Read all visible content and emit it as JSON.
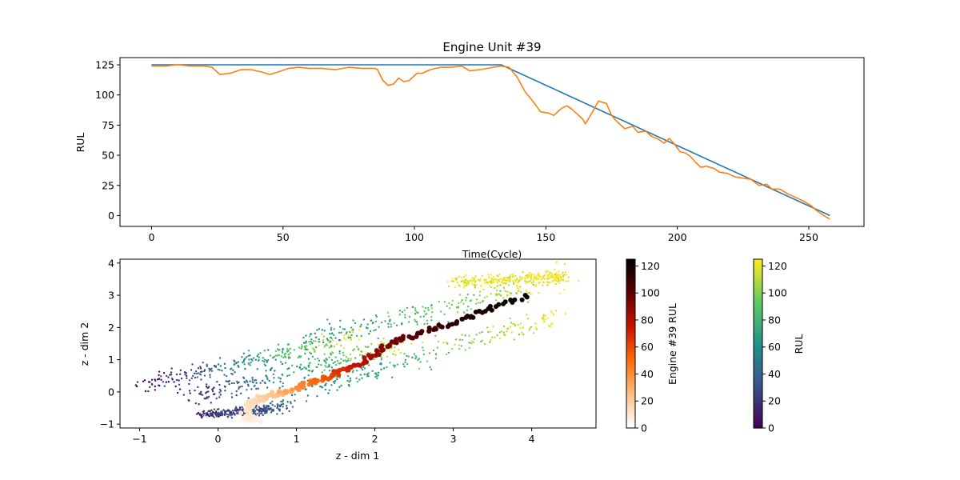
{
  "chart_data": [
    {
      "type": "line",
      "title": "Engine Unit #39",
      "xlabel": "Time(Cycle)",
      "ylabel": "RUL",
      "xlim": [
        -12,
        271
      ],
      "ylim": [
        -9,
        131
      ],
      "xticks": [
        0,
        50,
        100,
        150,
        200,
        250
      ],
      "yticks": [
        0,
        25,
        50,
        75,
        100,
        125
      ],
      "grid": false,
      "series": [
        {
          "color": "#1f77b4",
          "points": [
            [
              0,
              125
            ],
            [
              133,
              125
            ],
            [
              258,
              0
            ]
          ]
        },
        {
          "color": "#ff7f0e",
          "points": [
            [
              0,
              124
            ],
            [
              5,
              124
            ],
            [
              10,
              125
            ],
            [
              15,
              124
            ],
            [
              20,
              124
            ],
            [
              23,
              123
            ],
            [
              26,
              117
            ],
            [
              30,
              118
            ],
            [
              34,
              121
            ],
            [
              38,
              121
            ],
            [
              42,
              119
            ],
            [
              45,
              117
            ],
            [
              48,
              119
            ],
            [
              52,
              122
            ],
            [
              56,
              123
            ],
            [
              60,
              122
            ],
            [
              65,
              122
            ],
            [
              70,
              121
            ],
            [
              75,
              123
            ],
            [
              80,
              122
            ],
            [
              85,
              122
            ],
            [
              86,
              121
            ],
            [
              88,
              112
            ],
            [
              90,
              108
            ],
            [
              92,
              109
            ],
            [
              94,
              114
            ],
            [
              96,
              111
            ],
            [
              98,
              112
            ],
            [
              101,
              118
            ],
            [
              103,
              118
            ],
            [
              106,
              121
            ],
            [
              110,
              123
            ],
            [
              114,
              123
            ],
            [
              118,
              124
            ],
            [
              121,
              120
            ],
            [
              125,
              121
            ],
            [
              130,
              123
            ],
            [
              133,
              124
            ],
            [
              136,
              123
            ],
            [
              139,
              115
            ],
            [
              142,
              103
            ],
            [
              145,
              95
            ],
            [
              148,
              86
            ],
            [
              151,
              85
            ],
            [
              153,
              83
            ],
            [
              156,
              89
            ],
            [
              158,
              91
            ],
            [
              160,
              88
            ],
            [
              162,
              84
            ],
            [
              164,
              80
            ],
            [
              165,
              76
            ],
            [
              168,
              87
            ],
            [
              170,
              95
            ],
            [
              173,
              93
            ],
            [
              175,
              83
            ],
            [
              177,
              78
            ],
            [
              180,
              72
            ],
            [
              183,
              74
            ],
            [
              185,
              69
            ],
            [
              188,
              70
            ],
            [
              190,
              66
            ],
            [
              193,
              63
            ],
            [
              195,
              60
            ],
            [
              197,
              64
            ],
            [
              199,
              59
            ],
            [
              201,
              53
            ],
            [
              203,
              52
            ],
            [
              205,
              49
            ],
            [
              207,
              44
            ],
            [
              209,
              40
            ],
            [
              211,
              41
            ],
            [
              214,
              39
            ],
            [
              216,
              36
            ],
            [
              219,
              35
            ],
            [
              222,
              32
            ],
            [
              225,
              31
            ],
            [
              228,
              30
            ],
            [
              231,
              25
            ],
            [
              234,
              26
            ],
            [
              236,
              22
            ],
            [
              239,
              22
            ],
            [
              242,
              18
            ],
            [
              245,
              15
            ],
            [
              248,
              12
            ],
            [
              251,
              8
            ],
            [
              253,
              4
            ],
            [
              255,
              1
            ],
            [
              258,
              -3
            ]
          ]
        }
      ]
    },
    {
      "type": "scatter",
      "xlabel": "z - dim 1",
      "ylabel": "z - dim 2",
      "xlim": [
        -1.25,
        4.82
      ],
      "ylim": [
        -1.12,
        4.12
      ],
      "xticks": [
        -1,
        0,
        1,
        2,
        3,
        4
      ],
      "yticks": [
        -1,
        0,
        1,
        2,
        3,
        4
      ],
      "grid": false,
      "background_cloud": {
        "colormap": "viridis",
        "color_by": "RUL",
        "point_size": "small",
        "bands": [
          {
            "start": [
              -0.98,
              0.18
            ],
            "end": [
              1.75,
              1.72
            ],
            "rul_start": 0,
            "rul_end": 125,
            "spread": 0.14
          },
          {
            "start": [
              -0.35,
              -0.15
            ],
            "end": [
              2.4,
              1.55
            ],
            "rul_start": 15,
            "rul_end": 120,
            "spread": 0.16
          },
          {
            "start": [
              0.3,
              -0.6
            ],
            "end": [
              4.3,
              2.35
            ],
            "rul_start": 40,
            "rul_end": 125,
            "spread": 0.16
          },
          {
            "start": [
              1.1,
              1.55
            ],
            "end": [
              4.5,
              3.6
            ],
            "rul_start": 60,
            "rul_end": 125,
            "spread": 0.17
          },
          {
            "start": [
              3.0,
              3.4
            ],
            "end": [
              4.4,
              3.6
            ],
            "rul_start": 125,
            "rul_end": 125,
            "spread": 0.1
          },
          {
            "start": [
              -0.25,
              -0.72
            ],
            "end": [
              0.85,
              -0.5
            ],
            "rul_start": 15,
            "rul_end": 35,
            "spread": 0.07
          }
        ]
      },
      "engine_39": {
        "colormap": "gist_heat_r",
        "color_by": "Engine #39 RUL",
        "point_size": "large",
        "path": [
          [
            -0.25,
            -0.84,
            0
          ],
          [
            0.35,
            -0.86,
            3
          ],
          [
            0.5,
            -0.85,
            6
          ],
          [
            0.35,
            -0.75,
            8
          ],
          [
            0.4,
            -0.42,
            12
          ],
          [
            0.5,
            -0.2,
            16
          ],
          [
            0.7,
            -0.12,
            22
          ],
          [
            0.9,
            0.02,
            32
          ],
          [
            1.2,
            0.28,
            48
          ],
          [
            1.45,
            0.55,
            62
          ],
          [
            1.75,
            0.78,
            75
          ],
          [
            2.05,
            1.25,
            88
          ],
          [
            2.3,
            1.6,
            98
          ],
          [
            2.6,
            1.85,
            106
          ],
          [
            3.0,
            2.15,
            114
          ],
          [
            3.4,
            2.55,
            120
          ],
          [
            3.95,
            2.98,
            125
          ]
        ]
      },
      "colorbars": [
        {
          "label": "Engine #39 RUL",
          "colormap": "gist_heat_r",
          "range": [
            0,
            125
          ],
          "ticks": [
            0,
            20,
            40,
            60,
            80,
            100,
            120
          ]
        },
        {
          "label": "RUL",
          "colormap": "viridis",
          "range": [
            0,
            125
          ],
          "ticks": [
            0,
            20,
            40,
            60,
            80,
            100,
            120
          ]
        }
      ]
    }
  ]
}
